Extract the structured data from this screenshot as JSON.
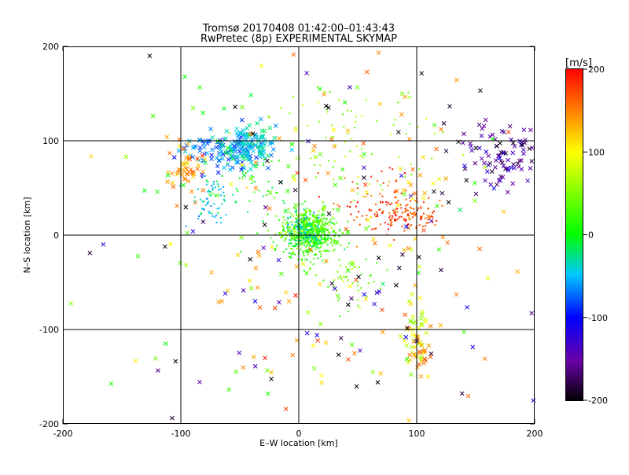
{
  "chart_data": {
    "type": "scatter",
    "title": "Tromsø 20170408 01:42:00–01:43:43",
    "subtitle": "RwPretec (8p) EXPERIMENTAL SKYMAP",
    "xlabel": "E–W location [km]",
    "ylabel": "N–S location [km]",
    "xlim": [
      -200,
      200
    ],
    "ylim": [
      -200,
      200
    ],
    "xticks": [
      -200,
      -100,
      0,
      100,
      200
    ],
    "yticks": [
      -200,
      -100,
      0,
      100,
      200
    ],
    "grid_lines_x": [
      -100,
      0,
      100
    ],
    "grid_lines_y": [
      -100,
      0,
      100
    ],
    "colorbar": {
      "label": "[m/s]",
      "min": -200,
      "max": 200,
      "ticks": [
        200,
        100,
        0,
        -100,
        -200
      ],
      "colormap": "rainbow (black–purple–blue–cyan–green–yellow–red)"
    },
    "series": [
      {
        "value": -70,
        "marker": "x",
        "cx": -62,
        "cy": 90,
        "sx": 20,
        "sy": 9,
        "n": 110
      },
      {
        "value": 140,
        "marker": "x",
        "cx": -95,
        "cy": 68,
        "sx": 8,
        "sy": 16,
        "n": 45
      },
      {
        "value": -40,
        "marker": "x",
        "cx": -42,
        "cy": 95,
        "sx": 11,
        "sy": 12,
        "n": 110
      },
      {
        "value": -40,
        "marker": "dot",
        "cx": -75,
        "cy": 40,
        "sx": 9,
        "sy": 12,
        "n": 70
      },
      {
        "value": 5,
        "marker": "dot",
        "cx": -40,
        "cy": 55,
        "sx": 16,
        "sy": 18,
        "n": 40
      },
      {
        "value": 20,
        "marker": "dot",
        "cx": 10,
        "cy": 0,
        "sx": 12,
        "sy": 12,
        "n": 520
      },
      {
        "value": 40,
        "marker": "dot",
        "cx": 5,
        "cy": 10,
        "sx": 8,
        "sy": 8,
        "n": 150
      },
      {
        "value": -30,
        "marker": "dot",
        "cx": 5,
        "cy": 5,
        "sx": 8,
        "sy": 10,
        "n": 110
      },
      {
        "value": 175,
        "marker": "dot",
        "cx": 90,
        "cy": 22,
        "sx": 15,
        "sy": 10,
        "n": 130
      },
      {
        "value": 175,
        "marker": "dot",
        "cx": 65,
        "cy": 38,
        "sx": 20,
        "sy": 18,
        "n": 60
      },
      {
        "value": 55,
        "marker": "dot",
        "cx": 40,
        "cy": 100,
        "sx": 40,
        "sy": 25,
        "n": 85
      },
      {
        "value": 40,
        "marker": "dot",
        "cx": 45,
        "cy": -50,
        "sx": 12,
        "sy": 18,
        "n": 55
      },
      {
        "value": 75,
        "marker": "x",
        "cx": 100,
        "cy": -105,
        "sx": 6,
        "sy": 20,
        "n": 40
      },
      {
        "value": 140,
        "marker": "x",
        "cx": 100,
        "cy": -125,
        "sx": 6,
        "sy": 15,
        "n": 22
      },
      {
        "value": -140,
        "marker": "x",
        "cx": 175,
        "cy": 85,
        "sx": 15,
        "sy": 18,
        "n": 70
      },
      {
        "value": -180,
        "marker": "x",
        "cx": 160,
        "cy": 95,
        "sx": 30,
        "sy": 25,
        "n": 30
      },
      {
        "value": 150,
        "marker": "x",
        "cx": 60,
        "cy": -20,
        "sx": 70,
        "sy": 100,
        "n": 90
      },
      {
        "value": -130,
        "marker": "x",
        "cx": 50,
        "cy": -60,
        "sx": 90,
        "sy": 90,
        "n": 40
      },
      {
        "value": -195,
        "marker": "x",
        "cx": 20,
        "cy": -40,
        "sx": 100,
        "sy": 110,
        "n": 50
      },
      {
        "value": 30,
        "marker": "x",
        "cx": 0,
        "cy": 20,
        "sx": 95,
        "sy": 100,
        "n": 85
      },
      {
        "value": 110,
        "marker": "x",
        "cx": 0,
        "cy": 0,
        "sx": 100,
        "sy": 100,
        "n": 50
      }
    ]
  }
}
